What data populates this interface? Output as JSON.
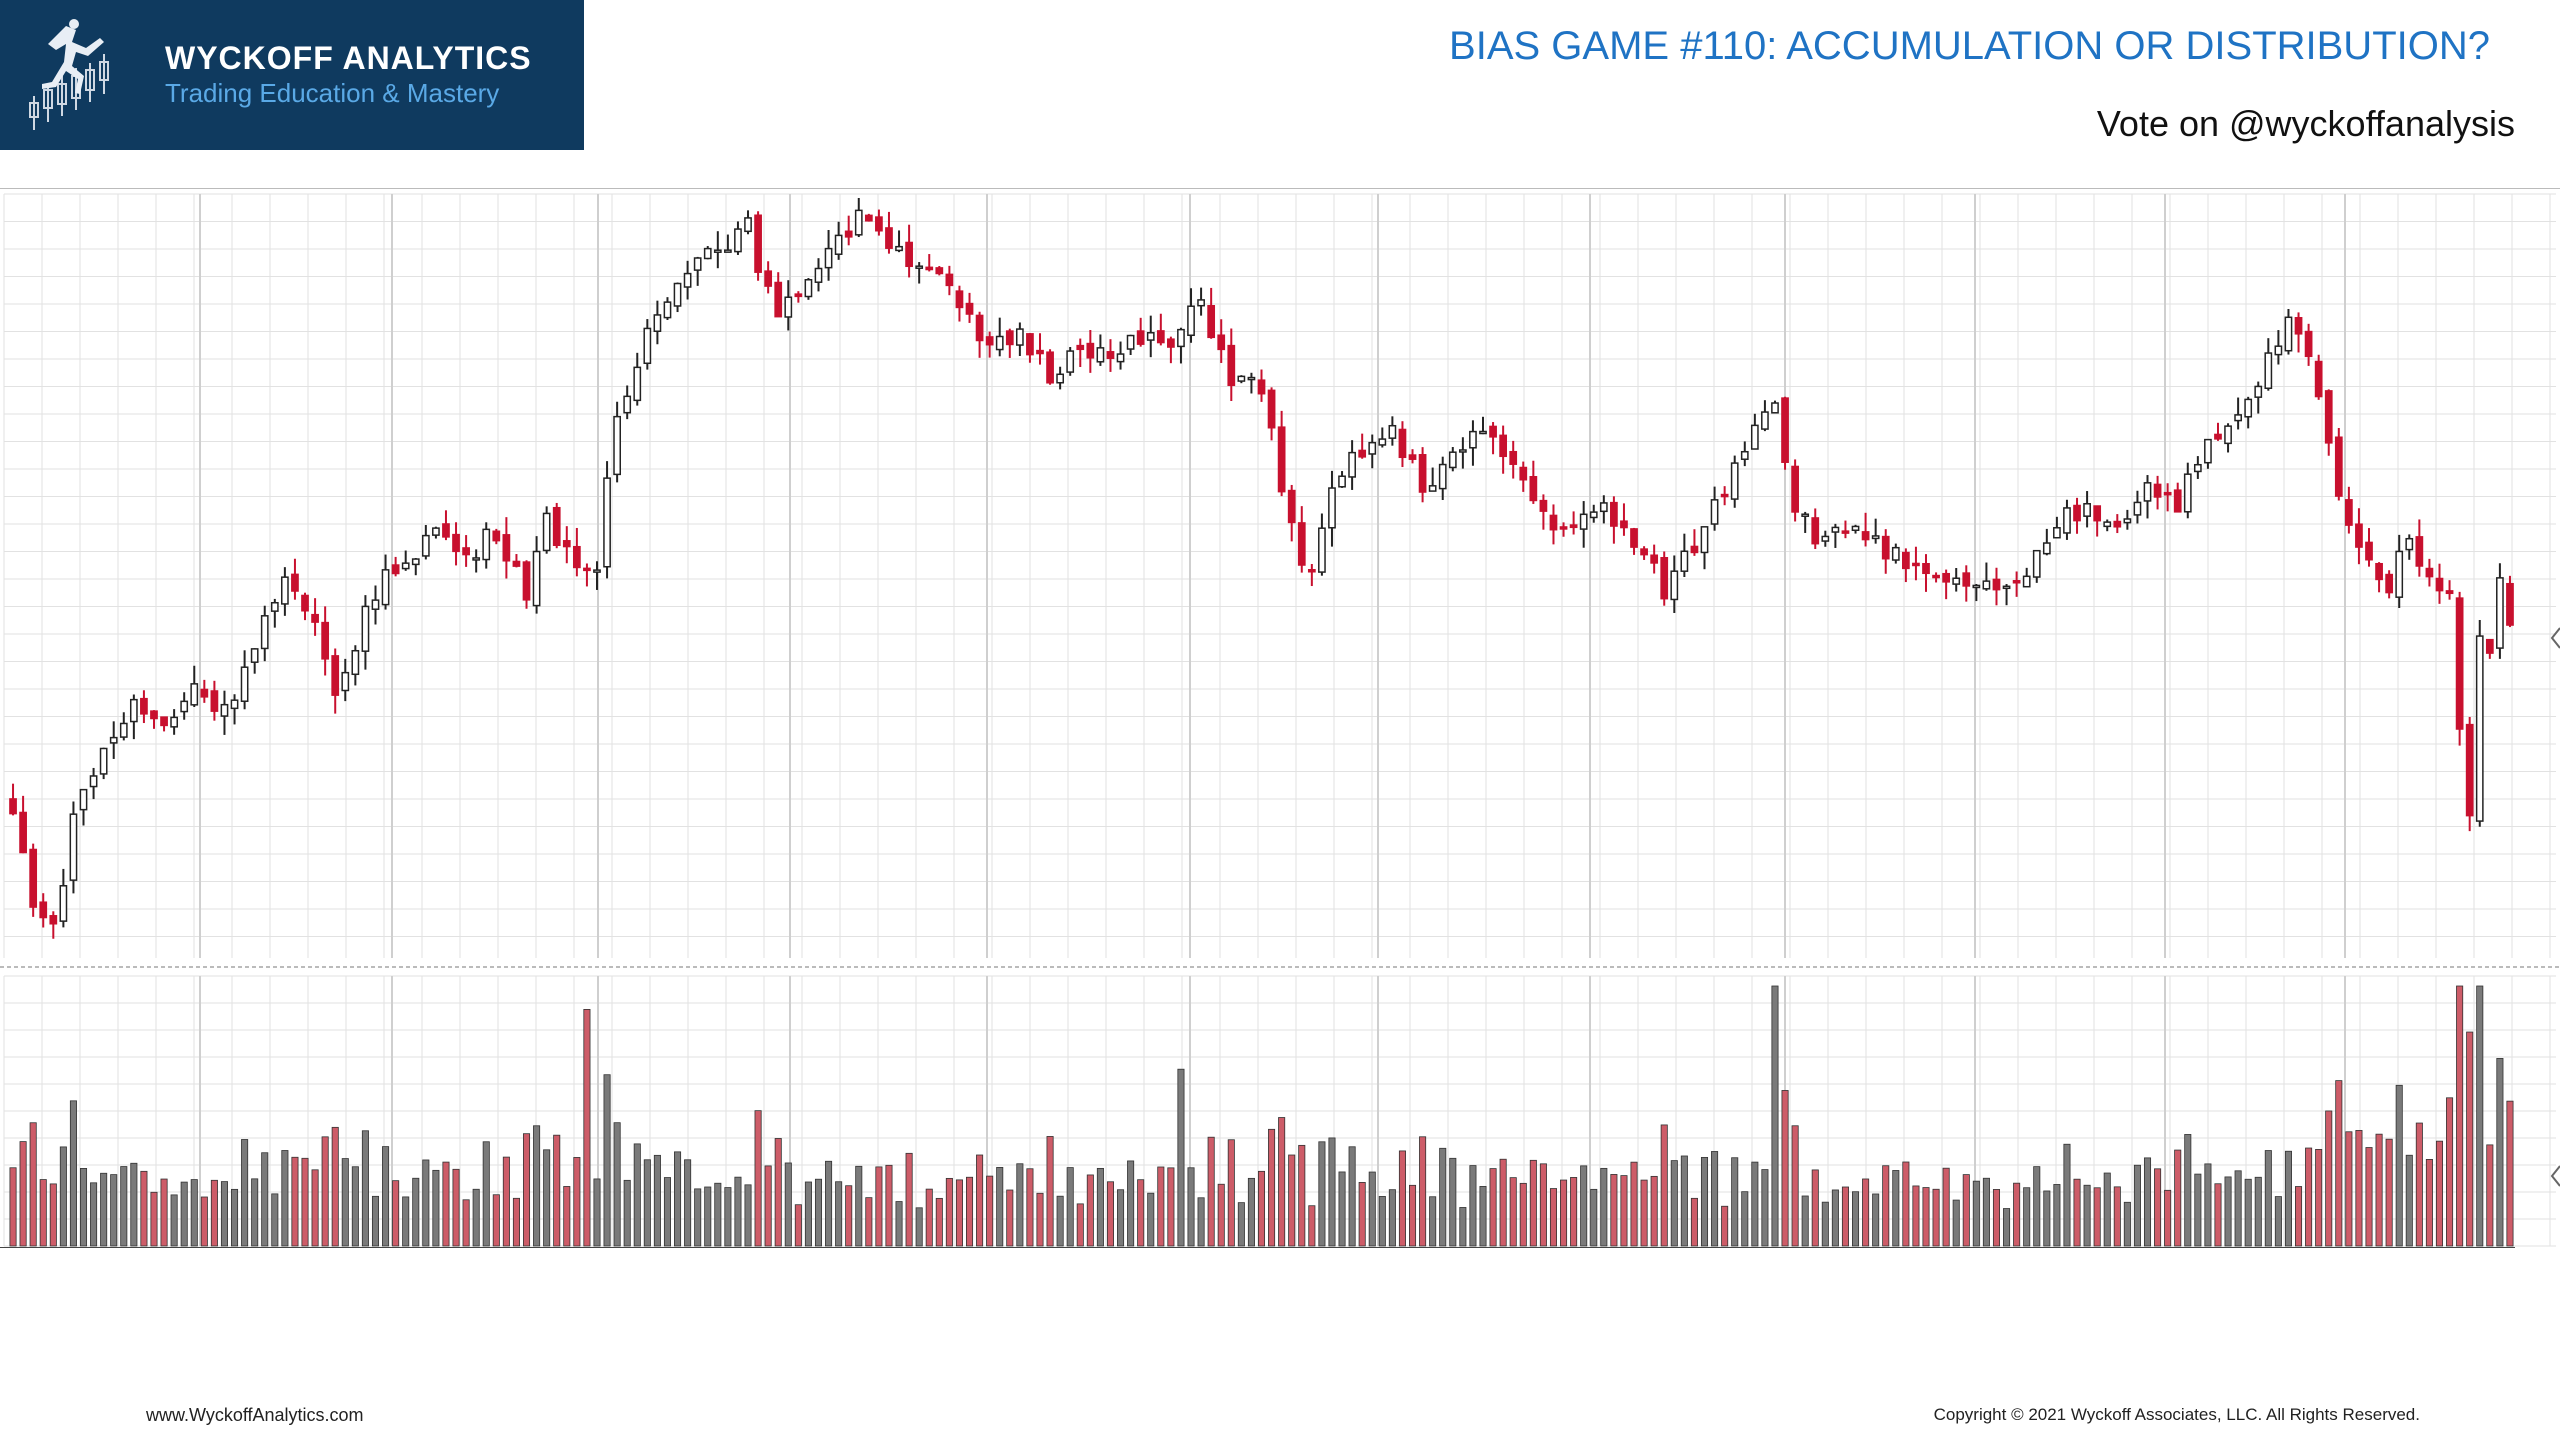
{
  "logo": {
    "title": "WYCKOFF ANALYTICS",
    "subtitle": "Trading Education & Mastery"
  },
  "header": {
    "title": "BIAS GAME #110: ACCUMULATION OR DISTRIBUTION?",
    "subtitle": "Vote on @wyckoffanalysis"
  },
  "footer": {
    "website": "www.WyckoffAnalytics.com",
    "copyright": "Copyright © 2021 Wyckoff Associates, LLC. All Rights Reserved."
  },
  "colors": {
    "up": "#ffffff",
    "down": "#c8102e",
    "outline": "#222222",
    "volume_up": "#7a7a7a",
    "volume_down": "#cd5c68",
    "grid": "#e2e2e2",
    "brand": "#0f3a5f",
    "accent": "#1f73c4"
  },
  "chart_data": {
    "type": "candlestick",
    "title": "",
    "xlabel": "",
    "ylabel": "",
    "grid": true,
    "price": {
      "ylim": [
        0,
        100
      ],
      "anchors": [
        [
          0,
          18
        ],
        [
          2,
          7
        ],
        [
          4,
          2
        ],
        [
          6,
          18
        ],
        [
          9,
          27
        ],
        [
          12,
          33
        ],
        [
          15,
          30
        ],
        [
          18,
          36
        ],
        [
          21,
          32
        ],
        [
          24,
          42
        ],
        [
          27,
          50
        ],
        [
          30,
          43
        ],
        [
          32,
          34
        ],
        [
          35,
          46
        ],
        [
          38,
          52
        ],
        [
          42,
          57
        ],
        [
          45,
          53
        ],
        [
          48,
          57
        ],
        [
          51,
          49
        ],
        [
          53,
          58
        ],
        [
          56,
          53
        ],
        [
          58,
          50
        ],
        [
          59,
          63
        ],
        [
          60,
          71
        ],
        [
          63,
          84
        ],
        [
          66,
          92
        ],
        [
          70,
          96
        ],
        [
          73,
          98
        ],
        [
          76,
          85
        ],
        [
          79,
          92
        ],
        [
          82,
          97
        ],
        [
          85,
          100
        ],
        [
          88,
          95
        ],
        [
          91,
          93
        ],
        [
          94,
          87
        ],
        [
          97,
          81
        ],
        [
          100,
          84
        ],
        [
          103,
          78
        ],
        [
          106,
          83
        ],
        [
          109,
          80
        ],
        [
          112,
          83
        ],
        [
          115,
          82
        ],
        [
          118,
          88
        ],
        [
          121,
          78
        ],
        [
          124,
          76
        ],
        [
          127,
          57
        ],
        [
          129,
          50
        ],
        [
          131,
          62
        ],
        [
          134,
          68
        ],
        [
          137,
          70
        ],
        [
          140,
          63
        ],
        [
          143,
          67
        ],
        [
          146,
          70
        ],
        [
          149,
          66
        ],
        [
          152,
          59
        ],
        [
          155,
          57
        ],
        [
          158,
          60
        ],
        [
          161,
          55
        ],
        [
          164,
          49
        ],
        [
          167,
          55
        ],
        [
          170,
          63
        ],
        [
          173,
          72
        ],
        [
          175,
          75
        ],
        [
          177,
          60
        ],
        [
          180,
          55
        ],
        [
          183,
          58
        ],
        [
          186,
          54
        ],
        [
          189,
          51
        ],
        [
          192,
          49
        ],
        [
          195,
          50
        ],
        [
          198,
          48
        ],
        [
          200,
          50
        ],
        [
          203,
          58
        ],
        [
          206,
          60
        ],
        [
          209,
          58
        ],
        [
          212,
          63
        ],
        [
          215,
          61
        ],
        [
          218,
          68
        ],
        [
          221,
          72
        ],
        [
          224,
          80
        ],
        [
          226,
          85
        ],
        [
          228,
          81
        ],
        [
          230,
          68
        ],
        [
          232,
          58
        ],
        [
          234,
          52
        ],
        [
          236,
          50
        ],
        [
          238,
          55
        ],
        [
          240,
          52
        ],
        [
          242,
          47
        ],
        [
          243,
          30
        ],
        [
          244,
          19
        ],
        [
          245,
          44
        ],
        [
          246,
          40
        ],
        [
          247,
          52
        ],
        [
          248,
          43
        ]
      ]
    },
    "volume": {
      "ylim": [
        0,
        100
      ],
      "spikes": [
        [
          57,
          91
        ],
        [
          116,
          68
        ],
        [
          175,
          100
        ],
        [
          242,
          57
        ]
      ]
    }
  }
}
